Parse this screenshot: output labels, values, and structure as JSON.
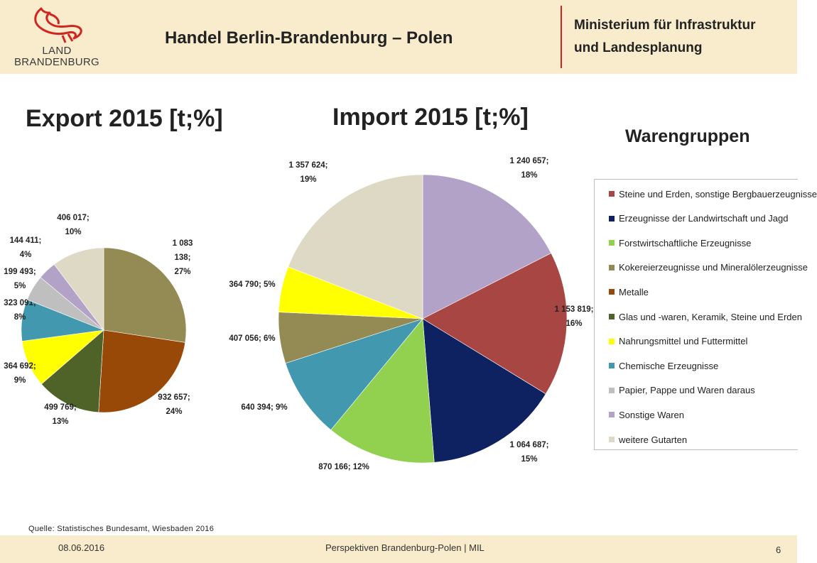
{
  "header": {
    "title": "Handel Berlin-Brandenburg – Polen",
    "logo_line1": "LAND",
    "logo_line2": "BRANDENBURG",
    "ministry_line1": "Ministerium für Infrastruktur",
    "ministry_line2": "und Landesplanung",
    "divider_color": "#d0261f"
  },
  "legend": {
    "title": "Warengruppen",
    "items": [
      {
        "label": "Steine und Erden, sonstige Bergbauerzeugnisse",
        "color": "#a84643"
      },
      {
        "label": "Erzeugnisse der Landwirtschaft und Jagd",
        "color": "#0e2161"
      },
      {
        "label": "Forstwirtschaftliche Erzeugnisse",
        "color": "#92d050"
      },
      {
        "label": "Kokereierzeugnisse und Mineralölerzeugnisse",
        "color": "#948a54"
      },
      {
        "label": "Metalle",
        "color": "#984807"
      },
      {
        "label": "Glas und -waren, Keramik, Steine und Erden",
        "color": "#4f6228"
      },
      {
        "label": "Nahrungsmittel und Futtermittel",
        "color": "#ffff00"
      },
      {
        "label": "Chemische Erzeugnisse",
        "color": "#4198af"
      },
      {
        "label": "Papier, Pappe und Waren daraus",
        "color": "#bfbfbf"
      },
      {
        "label": "Sonstige Waren",
        "color": "#b2a2c7"
      },
      {
        "label": "weitere Gutarten",
        "color": "#ddd9c4"
      }
    ]
  },
  "chart_data": [
    {
      "type": "pie",
      "title": "Export 2015 [t;%]",
      "slices": [
        {
          "category": "Kokereierzeugnisse und Mineralölerzeugnisse",
          "value": 1083138,
          "percent": 27,
          "label_lines": [
            "1 083",
            "138;",
            "27%"
          ],
          "color": "#948a54"
        },
        {
          "category": "Metalle",
          "value": 932657,
          "percent": 24,
          "label_lines": [
            "932 657;",
            "24%"
          ],
          "color": "#984807"
        },
        {
          "category": "Glas und -waren, Keramik, Steine und Erden",
          "value": 499769,
          "percent": 13,
          "label_lines": [
            "499 769;",
            "13%"
          ],
          "color": "#4f6228"
        },
        {
          "category": "Nahrungsmittel und Futtermittel",
          "value": 364692,
          "percent": 9,
          "label_lines": [
            "364 692;",
            "9%"
          ],
          "color": "#ffff00"
        },
        {
          "category": "Chemische Erzeugnisse",
          "value": 323091,
          "percent": 8,
          "label_lines": [
            "323 091;",
            "8%"
          ],
          "color": "#4198af"
        },
        {
          "category": "Papier, Pappe und Waren daraus",
          "value": 199493,
          "percent": 5,
          "label_lines": [
            "199 493;",
            "5%"
          ],
          "color": "#bfbfbf"
        },
        {
          "category": "Sonstige Waren",
          "value": 144411,
          "percent": 4,
          "label_lines": [
            "144 411;",
            "4%"
          ],
          "color": "#b2a2c7"
        },
        {
          "category": "weitere Gutarten",
          "value": 406017,
          "percent": 10,
          "label_lines": [
            "406 017;",
            "10%"
          ],
          "color": "#ddd9c4"
        }
      ]
    },
    {
      "type": "pie",
      "title": "Import 2015 [t;%]",
      "slices": [
        {
          "category": "Sonstige Waren",
          "value": 1240657,
          "percent": 18,
          "label_lines": [
            "1 240 657;",
            "18%"
          ],
          "color": "#b2a2c7"
        },
        {
          "category": "Steine und Erden, sonstige Bergbauerzeugnisse",
          "value": 1153819,
          "percent": 16,
          "label_lines": [
            "1 153 819;",
            "16%"
          ],
          "color": "#a84643"
        },
        {
          "category": "Erzeugnisse der Landwirtschaft und Jagd",
          "value": 1064687,
          "percent": 15,
          "label_lines": [
            "1 064 687;",
            "15%"
          ],
          "color": "#0e2161"
        },
        {
          "category": "Forstwirtschaftliche Erzeugnisse",
          "value": 870166,
          "percent": 12,
          "label_lines": [
            "870 166; 12%"
          ],
          "color": "#92d050"
        },
        {
          "category": "Chemische Erzeugnisse",
          "value": 640394,
          "percent": 9,
          "label_lines": [
            "640 394; 9%"
          ],
          "color": "#4198af"
        },
        {
          "category": "Kokereierzeugnisse und Mineralölerzeugnisse",
          "value": 407056,
          "percent": 6,
          "label_lines": [
            "407 056; 6%"
          ],
          "color": "#948a54"
        },
        {
          "category": "Nahrungsmittel und Futtermittel",
          "value": 364790,
          "percent": 5,
          "label_lines": [
            "364 790; 5%"
          ],
          "color": "#ffff00"
        },
        {
          "category": "weitere Gutarten",
          "value": 1357624,
          "percent": 19,
          "label_lines": [
            "1 357 624;",
            "19%"
          ],
          "color": "#ddd9c4"
        }
      ]
    }
  ],
  "source": "Quelle: Statistisches Bundesamt, Wiesbaden 2016",
  "footer": {
    "date": "08.06.2016",
    "center": "Perspektiven Brandenburg-Polen  | MIL",
    "page": "6"
  }
}
